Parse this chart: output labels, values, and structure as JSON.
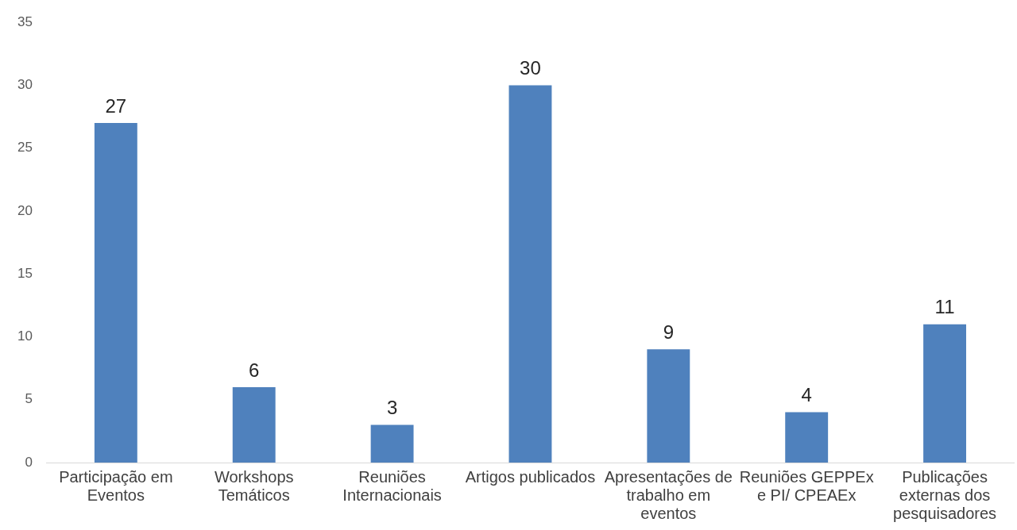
{
  "chart_data": {
    "type": "bar",
    "categories": [
      "Participação em Eventos",
      "Workshops Temáticos",
      "Reuniões Internacionais",
      "Artigos publicados",
      "Apresentações de trabalho em eventos",
      "Reuniões GEPPEx e PI/ CPEAEx",
      "Publicações externas dos pesquisadores"
    ],
    "values": [
      27,
      6,
      3,
      30,
      9,
      4,
      11
    ],
    "color": "#4f81bd",
    "ylim": [
      0,
      35
    ],
    "yticks": [
      0,
      5,
      10,
      15,
      20,
      25,
      30,
      35
    ],
    "grid": false,
    "legend": false,
    "data_labels": true
  }
}
